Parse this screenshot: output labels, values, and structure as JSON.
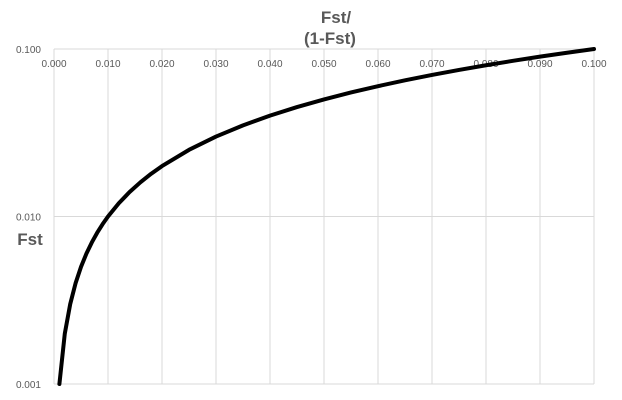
{
  "chart_data": {
    "type": "line",
    "title_lines": [
      "Fst/",
      "(1-Fst)"
    ],
    "xlabel": "Fst/ (1-Fst)",
    "ylabel": "Fst",
    "x_scale": "linear",
    "y_scale": "log",
    "xlim": [
      0,
      0.1
    ],
    "ylim": [
      0.001,
      0.1
    ],
    "x_ticks": [
      "0.000",
      "0.010",
      "0.020",
      "0.030",
      "0.040",
      "0.050",
      "0.060",
      "0.070",
      "0.080",
      "0.090",
      "0.100"
    ],
    "y_ticks": [
      "0.001",
      "0.010",
      "0.100"
    ],
    "x_axis_position": "top",
    "grid": true,
    "legend": "none",
    "series": [
      {
        "color": "#000000",
        "x": [
          0.001,
          0.002,
          0.003,
          0.004,
          0.005,
          0.006,
          0.007,
          0.008,
          0.009,
          0.01,
          0.012,
          0.014,
          0.016,
          0.018,
          0.02,
          0.025,
          0.03,
          0.035,
          0.04,
          0.045,
          0.05,
          0.055,
          0.06,
          0.065,
          0.07,
          0.075,
          0.08,
          0.085,
          0.09,
          0.095,
          0.1
        ],
        "y": [
          0.001,
          0.002,
          0.003,
          0.004,
          0.005,
          0.006,
          0.007,
          0.008,
          0.009,
          0.01,
          0.012,
          0.014,
          0.016,
          0.018,
          0.02,
          0.025,
          0.03,
          0.035,
          0.04,
          0.045,
          0.05,
          0.055,
          0.06,
          0.065,
          0.07,
          0.075,
          0.08,
          0.085,
          0.09,
          0.095,
          0.1
        ]
      }
    ]
  }
}
